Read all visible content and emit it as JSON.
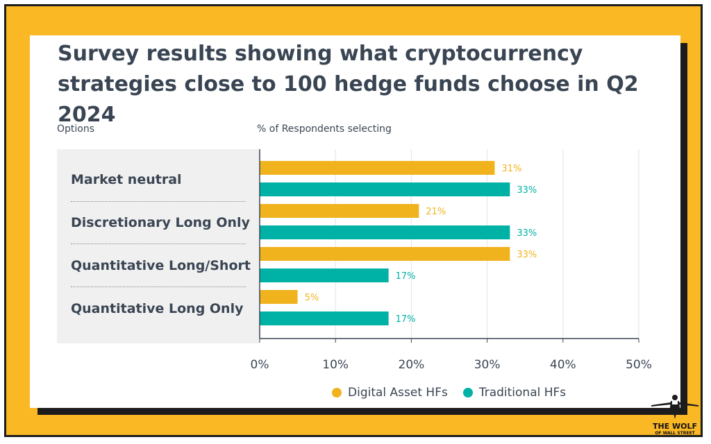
{
  "chart": {
    "title": "Survey results showing what cryptocurrency strategies close to 100 hedge funds choose in Q2 2024",
    "options_header": "Options",
    "values_header": "% of Respondents selecting"
  },
  "logo": {
    "line1": "THE WOLF",
    "line2": "OF WALL STREET"
  },
  "colors": {
    "frame": "#fbb825",
    "series_digital": "#f0b31e",
    "series_traditional": "#00b2a5"
  },
  "chart_data": {
    "type": "bar",
    "orientation": "horizontal",
    "title": "Survey results showing what cryptocurrency strategies close to 100 hedge funds choose in Q2 2024",
    "xlabel": "% of Respondents selecting",
    "ylabel": "Options",
    "categories": [
      "Market neutral",
      "Discretionary Long Only",
      "Quantitative Long/Short",
      "Quantitative Long Only"
    ],
    "series": [
      {
        "name": "Digital Asset HFs",
        "color": "#f0b31e",
        "values": [
          31,
          21,
          33,
          5
        ],
        "labels": [
          "31%",
          "21%",
          "33%",
          "5%"
        ]
      },
      {
        "name": "Traditional HFs",
        "color": "#00b2a5",
        "values": [
          33,
          33,
          17,
          17
        ],
        "labels": [
          "33%",
          "33%",
          "17%",
          "17%"
        ]
      }
    ],
    "xlim": [
      0,
      50
    ],
    "ticks": [
      0,
      10,
      20,
      30,
      40,
      50
    ],
    "tick_labels": [
      "0%",
      "10%",
      "20%",
      "30%",
      "40%",
      "50%"
    ],
    "grid": true,
    "legend": "bottom"
  }
}
